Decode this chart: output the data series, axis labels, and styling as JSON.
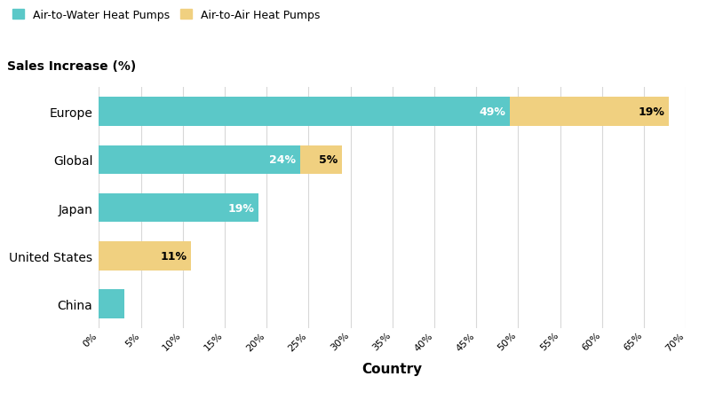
{
  "categories": [
    "Europe",
    "Global",
    "Japan",
    "United States",
    "China"
  ],
  "air_to_water": [
    49,
    24,
    19,
    0,
    3
  ],
  "air_to_air": [
    19,
    5,
    0,
    11,
    0
  ],
  "color_water": "#5bc8c8",
  "color_air": "#f0d080",
  "background_color": "#ffffff",
  "grid_color": "#d8d8d8",
  "title": "Sales Increase (%)",
  "xlabel": "Country",
  "legend_water": "Air-to-Water Heat Pumps",
  "legend_air": "Air-to-Air Heat Pumps",
  "xlim": [
    0,
    70
  ],
  "xtick_step": 5,
  "bar_height": 0.6,
  "water_label_color": "white",
  "air_label_color": "black"
}
